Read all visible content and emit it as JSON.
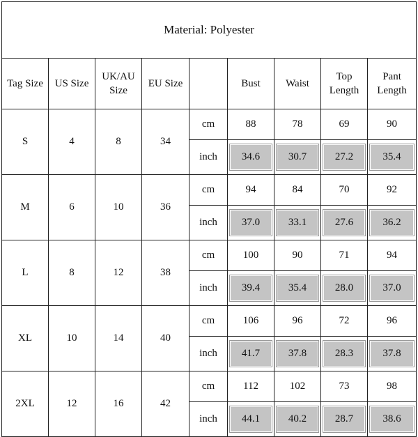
{
  "title": "Material: Polyester",
  "headers": [
    "Tag Size",
    "US Size",
    "UK/AU Size",
    "EU Size",
    "",
    "Bust",
    "Waist",
    "Top Length",
    "Pant Length"
  ],
  "unit_cm": "cm",
  "unit_inch": "inch",
  "grey_color": "#c4c4c4",
  "rows": [
    {
      "tag": "S",
      "us": "4",
      "uk": "8",
      "eu": "34",
      "cm": [
        "88",
        "78",
        "69",
        "90"
      ],
      "inch": [
        "34.6",
        "30.7",
        "27.2",
        "35.4"
      ]
    },
    {
      "tag": "M",
      "us": "6",
      "uk": "10",
      "eu": "36",
      "cm": [
        "94",
        "84",
        "70",
        "92"
      ],
      "inch": [
        "37.0",
        "33.1",
        "27.6",
        "36.2"
      ]
    },
    {
      "tag": "L",
      "us": "8",
      "uk": "12",
      "eu": "38",
      "cm": [
        "100",
        "90",
        "71",
        "94"
      ],
      "inch": [
        "39.4",
        "35.4",
        "28.0",
        "37.0"
      ]
    },
    {
      "tag": "XL",
      "us": "10",
      "uk": "14",
      "eu": "40",
      "cm": [
        "106",
        "96",
        "72",
        "96"
      ],
      "inch": [
        "41.7",
        "37.8",
        "28.3",
        "37.8"
      ]
    },
    {
      "tag": "2XL",
      "us": "12",
      "uk": "16",
      "eu": "42",
      "cm": [
        "112",
        "102",
        "73",
        "98"
      ],
      "inch": [
        "44.1",
        "40.2",
        "28.7",
        "38.6"
      ]
    }
  ]
}
